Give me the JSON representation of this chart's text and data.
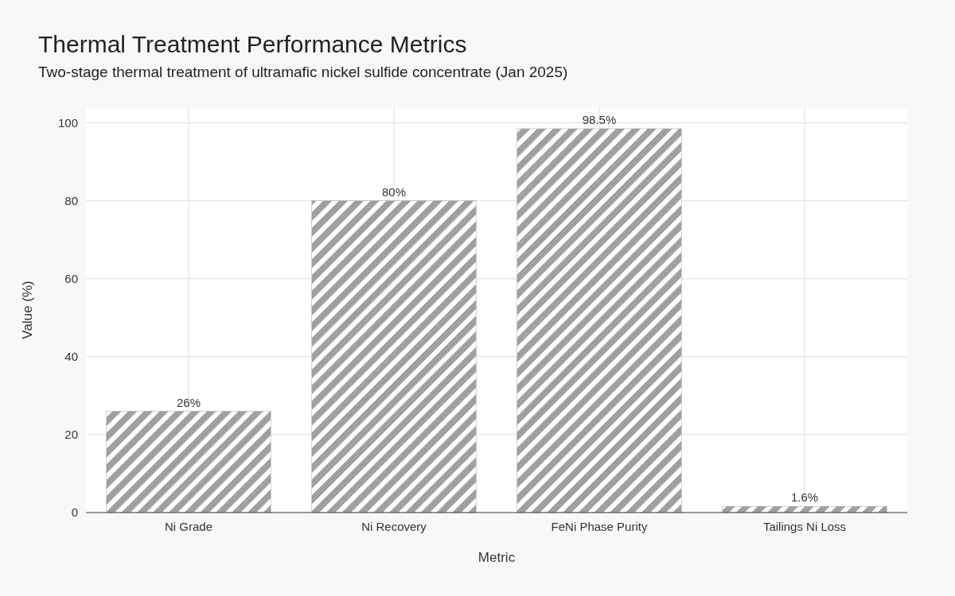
{
  "chart_data": {
    "type": "bar",
    "title": "Thermal Treatment Performance Metrics",
    "subtitle": "Two-stage thermal treatment of ultramafic nickel sulfide concentrate (Jan 2025)",
    "xlabel": "Metric",
    "ylabel": "Value (%)",
    "categories": [
      "Ni Grade",
      "Ni Recovery",
      "FeNi Phase Purity",
      "Tailings Ni Loss"
    ],
    "values": [
      26,
      80,
      98.5,
      1.6
    ],
    "value_labels": [
      "26%",
      "80%",
      "98.5%",
      "1.6%"
    ],
    "color": "#a0a0a0",
    "ylim": [
      0,
      104
    ],
    "yticks": [
      0,
      20,
      40,
      60,
      80,
      100
    ],
    "grid": true
  }
}
